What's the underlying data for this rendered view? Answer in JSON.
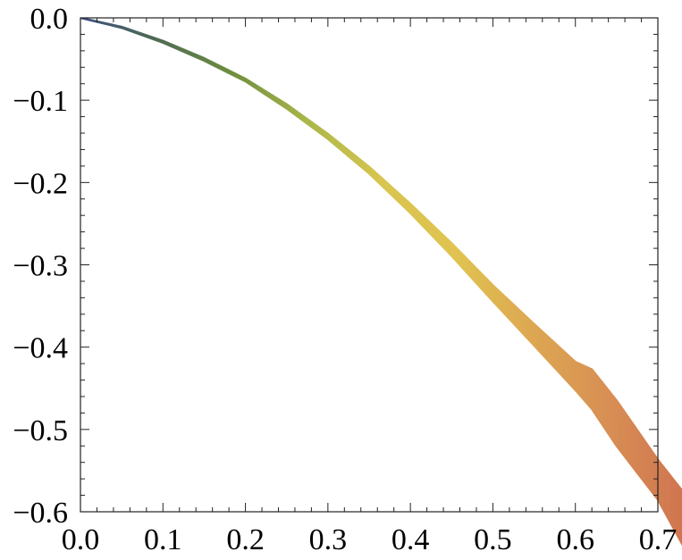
{
  "chart_data": {
    "type": "area",
    "title": "",
    "xlabel": "",
    "ylabel": "",
    "xlim": [
      0.0,
      0.7
    ],
    "ylim": [
      -0.6,
      0.0
    ],
    "grid": false,
    "x_ticks": [
      "0.0",
      "0.1",
      "0.2",
      "0.3",
      "0.4",
      "0.5",
      "0.6",
      "0.7"
    ],
    "y_ticks": [
      "0.0",
      "−0.1",
      "−0.2",
      "−0.3",
      "−0.4",
      "−0.5",
      "−0.6"
    ],
    "x_tick_values": [
      0.0,
      0.1,
      0.2,
      0.3,
      0.4,
      0.5,
      0.6,
      0.7
    ],
    "y_tick_values": [
      0.0,
      -0.1,
      -0.2,
      -0.3,
      -0.4,
      -0.5,
      -0.6
    ],
    "series": [
      {
        "x": [
          0.0,
          0.05,
          0.1,
          0.15,
          0.2,
          0.25,
          0.3,
          0.35,
          0.4,
          0.45,
          0.5,
          0.55,
          0.6,
          0.62,
          0.65,
          0.7,
          0.73
        ],
        "upper": [
          0.0,
          -0.011,
          -0.028,
          -0.049,
          -0.074,
          -0.105,
          -0.141,
          -0.181,
          -0.226,
          -0.274,
          -0.325,
          -0.372,
          -0.418,
          -0.427,
          -0.465,
          -0.537,
          -0.575
        ],
        "lower": [
          0.0,
          -0.012,
          -0.03,
          -0.052,
          -0.077,
          -0.11,
          -0.147,
          -0.189,
          -0.237,
          -0.289,
          -0.344,
          -0.398,
          -0.452,
          -0.475,
          -0.52,
          -0.585,
          -0.64
        ],
        "colors": [
          "#3b4f7f",
          "#4e6b55",
          "#6e8d3f",
          "#a9b64a",
          "#d8c54f",
          "#e0c350",
          "#dda752",
          "#d88f54",
          "#d07550"
        ]
      }
    ]
  }
}
